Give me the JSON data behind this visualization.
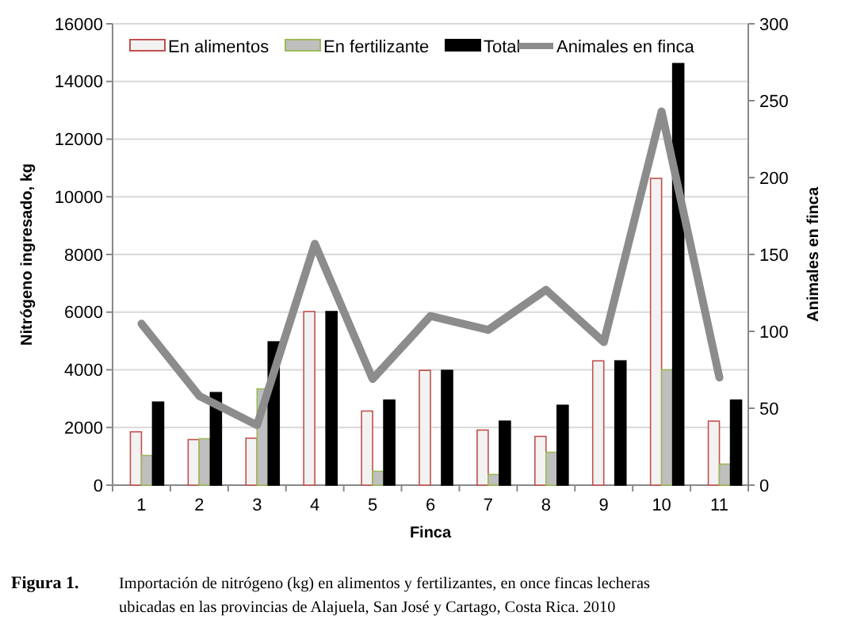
{
  "chart_data": {
    "type": "bar",
    "xlabel": "Finca",
    "ylabel": "Nitrógeno ingresado, kg",
    "y2label": "Animales en finca",
    "categories": [
      "1",
      "2",
      "3",
      "4",
      "5",
      "6",
      "7",
      "8",
      "9",
      "10",
      "11"
    ],
    "series": [
      {
        "name": "En alimentos",
        "color": "#f2f2f2",
        "values": [
          1850,
          1580,
          1630,
          6020,
          2570,
          3980,
          1910,
          1690,
          4310,
          10640,
          2220
        ]
      },
      {
        "name": "En fertilizante",
        "color": "#bfbfbf",
        "values": [
          1030,
          1610,
          3340,
          0,
          480,
          0,
          370,
          1140,
          0,
          4000,
          730
        ]
      },
      {
        "name": "Total",
        "color": "#000000",
        "values": [
          2880,
          3210,
          4970,
          6020,
          2950,
          3980,
          2220,
          2770,
          4310,
          14620,
          2950
        ]
      },
      {
        "name": "Animales en finca",
        "type": "line",
        "axis": "y2",
        "color": "#8c8c8c",
        "values": [
          105,
          58,
          39,
          157,
          69,
          110,
          101,
          127,
          93,
          243,
          70
        ]
      }
    ],
    "ylim": [
      0,
      16000
    ],
    "yticks": [
      0,
      2000,
      4000,
      6000,
      8000,
      10000,
      12000,
      14000,
      16000
    ],
    "y2lim": [
      0,
      300
    ],
    "y2ticks": [
      0,
      50,
      100,
      150,
      200,
      250,
      300
    ],
    "grid": "y",
    "legend": "top",
    "annotations": [
      "Figura 1.  Importación de nitrógeno (kg) en alimentos y fertilizantes, en once fincas lecheras ubicadas en las provincias de Alajuela, San José y Cartago, Costa Rica. 2010"
    ]
  }
}
